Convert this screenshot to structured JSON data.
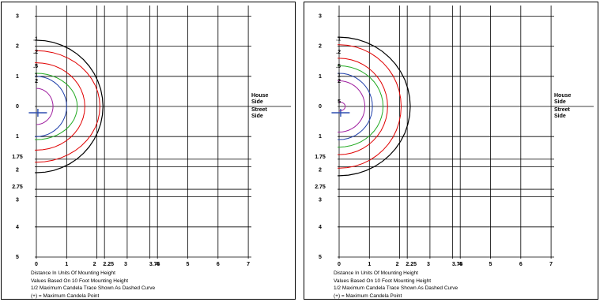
{
  "panels": [
    {
      "id": "left",
      "x_ticks": [
        "0",
        "1",
        "2",
        "2.25",
        "3",
        "3.75",
        "4",
        "5",
        "6",
        "7"
      ],
      "y_ticks_top": [
        "3",
        "2",
        "1",
        "0"
      ],
      "y_ticks_bottom": [
        "1",
        "1.75",
        "2",
        "2.75",
        "3",
        "4",
        "5"
      ],
      "contour_labels": [
        ".1",
        ".2",
        ".5",
        "1",
        "2"
      ],
      "side_labels": [
        "House",
        "Side",
        "Street",
        "Side"
      ],
      "notes": [
        "Distance In Units Of Mounting Height",
        "Values Based On 10 Foot Mounting Height",
        "1/2 Maximum Candela Trace Shown As Dashed Curve",
        "(+) = Maximum Candela Point"
      ]
    },
    {
      "id": "right",
      "x_ticks": [
        "0",
        "1",
        "2",
        "2.25",
        "3",
        "3.75",
        "4",
        "5",
        "6",
        "7"
      ],
      "y_ticks_top": [
        "3",
        "2",
        "1",
        "0"
      ],
      "y_ticks_bottom": [
        "1",
        "1.75",
        "2",
        "2.75",
        "3",
        "4",
        "5"
      ],
      "contour_labels": [
        ".1",
        ".2",
        ".5",
        "1",
        "2",
        "5"
      ],
      "side_labels": [
        "House",
        "Side",
        "Street",
        "Side"
      ],
      "notes": [
        "Distance In Units Of Mounting Height",
        "Values Based On 10 Foot Mounting Height",
        "1/2 Maximum Candela Trace Shown As Dashed Curve",
        "(+) = Maximum Candela Point"
      ]
    }
  ],
  "colors": {
    "c01": "#000000",
    "c02": "#e00000",
    "c05": "#22aa22",
    "c1": "#1f3faa",
    "c2": "#a020a0",
    "c5": "#a020a0",
    "marker": "#2e4fb0"
  }
}
